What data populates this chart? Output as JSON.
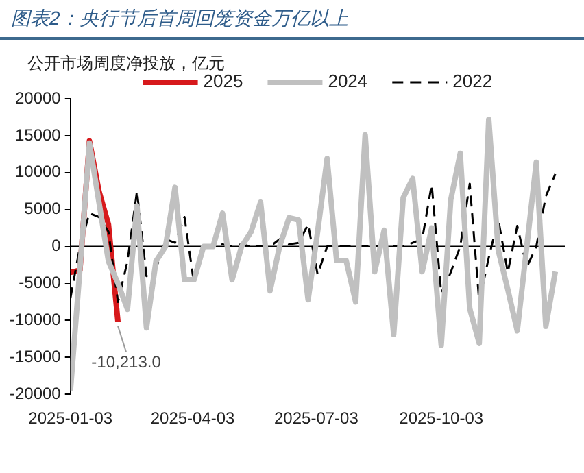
{
  "chart_data": {
    "type": "line",
    "title": "图表2：央行节后首周回笼资金万亿以上",
    "ylabel": "公开市场周度净投放，亿元",
    "x": [
      "2025-01-03",
      "2025-01-10",
      "2025-01-17",
      "2025-01-24",
      "2025-01-31",
      "2025-02-07",
      "2025-02-14",
      "2025-02-21",
      "2025-02-28",
      "2025-03-07",
      "2025-03-14",
      "2025-03-21",
      "2025-03-28",
      "2025-04-04",
      "2025-04-11",
      "2025-04-18",
      "2025-04-25",
      "2025-05-02",
      "2025-05-09",
      "2025-05-16",
      "2025-05-23",
      "2025-05-30",
      "2025-06-06",
      "2025-06-13",
      "2025-06-20",
      "2025-06-27",
      "2025-07-04",
      "2025-07-11",
      "2025-07-18",
      "2025-07-25",
      "2025-08-01",
      "2025-08-08",
      "2025-08-15",
      "2025-08-22",
      "2025-08-29",
      "2025-09-05",
      "2025-09-12",
      "2025-09-19",
      "2025-09-26",
      "2025-10-03",
      "2025-10-10",
      "2025-10-17",
      "2025-10-24",
      "2025-10-31",
      "2025-11-07",
      "2025-11-14",
      "2025-11-21",
      "2025-11-28",
      "2025-12-05",
      "2025-12-12",
      "2025-12-19",
      "2025-12-26"
    ],
    "series": [
      {
        "name": "2024",
        "color": "#c0c0c0",
        "values": [
          -19500,
          -3000,
          14000,
          6000,
          -2000,
          -5000,
          -8500,
          5500,
          -11000,
          -2000,
          0,
          8000,
          -4500,
          -4500,
          0,
          0,
          4500,
          -4500,
          0,
          2000,
          6000,
          -6000,
          0,
          3900,
          3600,
          -7200,
          2000,
          11900,
          -1900,
          -1900,
          -7500,
          15100,
          -3400,
          2200,
          -11900,
          6600,
          9200,
          -3400,
          2500,
          -13400,
          6300,
          12600,
          -8400,
          -13100,
          17200,
          -500,
          -5800,
          -11400,
          0,
          11400,
          -10800,
          -3400
        ]
      },
      {
        "name": "2022",
        "color": "#000000",
        "line_style": "dashed",
        "values": [
          -7000,
          0,
          4500,
          4000,
          2000,
          -7500,
          -2000,
          7500,
          -4000,
          -3000,
          1000,
          500,
          4000,
          -5000,
          0,
          0,
          300,
          0,
          300,
          0,
          0,
          0,
          1000,
          300,
          500,
          3000,
          -3800,
          0,
          0,
          0,
          0,
          0,
          0,
          0,
          0,
          0,
          500,
          1000,
          8400,
          -6300,
          -3500,
          0,
          8500,
          -7500,
          -1500,
          3700,
          -3500,
          2800,
          -2800,
          0,
          6800,
          9800
        ]
      },
      {
        "name": "2025",
        "color": "#d7191c",
        "values": [
          -3500,
          -3200,
          14300,
          7500,
          3000,
          -10213,
          null,
          null,
          null,
          null,
          null,
          null,
          null,
          null,
          null,
          null,
          null,
          null,
          null,
          null,
          null,
          null,
          null,
          null,
          null,
          null,
          null,
          null,
          null,
          null,
          null,
          null,
          null,
          null,
          null,
          null,
          null,
          null,
          null,
          null,
          null,
          null,
          null,
          null,
          null,
          null,
          null,
          null,
          null,
          null,
          null,
          null
        ]
      }
    ],
    "xlim": [
      "2025-01-03",
      "2026-01-02"
    ],
    "xticks": [
      "2025-01-03",
      "2025-04-03",
      "2025-07-03",
      "2025-10-03"
    ],
    "ylim": [
      -20000,
      20000
    ],
    "yticks": [
      -20000,
      -15000,
      -10000,
      -5000,
      0,
      5000,
      10000,
      15000,
      20000
    ],
    "annotations": [
      {
        "text": "-10,213.0",
        "x": "2025-02-07",
        "y": -10213
      }
    ],
    "ref_lines": [
      {
        "axis": "y",
        "value": 0,
        "color": "#000000"
      }
    ],
    "grid": false,
    "legend": "top",
    "marker": "none"
  }
}
